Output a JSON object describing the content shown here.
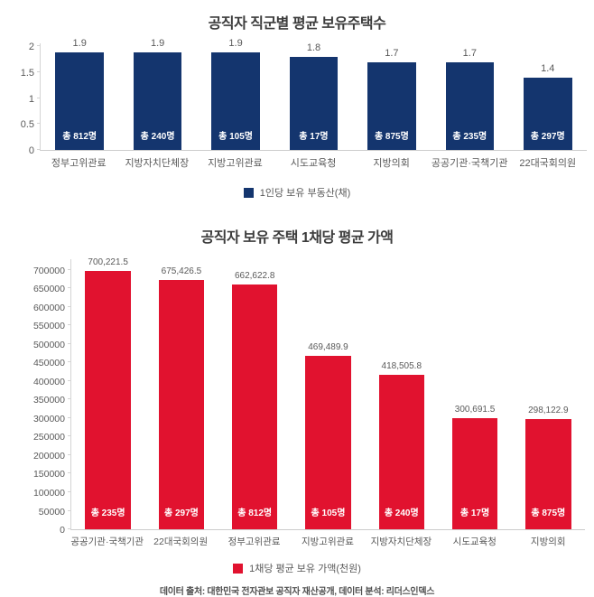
{
  "chart_data": [
    {
      "type": "bar",
      "title": "공직자 직군별 평균 보유주택수",
      "categories": [
        "정부고위관료",
        "지방자치단체장",
        "지방고위관료",
        "시도교육청",
        "지방의회",
        "공공기관·국책기관",
        "22대국회의원"
      ],
      "values": [
        1.9,
        1.9,
        1.9,
        1.8,
        1.7,
        1.7,
        1.4
      ],
      "value_labels": [
        "1.9",
        "1.9",
        "1.9",
        "1.8",
        "1.7",
        "1.7",
        "1.4"
      ],
      "bar_counts": [
        "총 812명",
        "총 240명",
        "총 105명",
        "총 17명",
        "총 875명",
        "총 235명",
        "총 297명"
      ],
      "ylim": [
        0,
        2
      ],
      "yticks": [
        0,
        0.5,
        1,
        1.5,
        2
      ],
      "ytick_labels": [
        "0",
        "0.5",
        "1",
        "1.5",
        "2"
      ],
      "legend": "1인당 보유 부동산(채)",
      "legend_position": "bottom",
      "grid": false,
      "bar_color": "#14356e"
    },
    {
      "type": "bar",
      "title": "공직자 보유 주택 1채당 평균 가액",
      "categories": [
        "공공기관·국책기관",
        "22대국회의원",
        "정부고위관료",
        "지방고위관료",
        "지방자치단체장",
        "시도교육청",
        "지방의회"
      ],
      "values": [
        700221.5,
        675426.5,
        662622.8,
        469489.9,
        418505.8,
        300691.5,
        298122.9
      ],
      "value_labels": [
        "700,221.5",
        "675,426.5",
        "662,622.8",
        "469,489.9",
        "418,505.8",
        "300,691.5",
        "298,122.9"
      ],
      "bar_counts": [
        "총 235명",
        "총 297명",
        "총 812명",
        "총 105명",
        "총 240명",
        "총 17명",
        "총 875명"
      ],
      "ylim": [
        0,
        700000
      ],
      "yticks": [
        0,
        50000,
        100000,
        150000,
        200000,
        250000,
        300000,
        350000,
        400000,
        450000,
        500000,
        550000,
        600000,
        650000,
        700000
      ],
      "ytick_labels": [
        "0",
        "50000",
        "100000",
        "150000",
        "200000",
        "250000",
        "300000",
        "350000",
        "400000",
        "450000",
        "500000",
        "550000",
        "600000",
        "650000",
        "700000"
      ],
      "legend": "1채당 평균 보유 가액(천원)",
      "legend_position": "bottom",
      "grid": false,
      "bar_color": "#e1122f"
    }
  ],
  "footer": "데이터 출처: 대한민국 전자관보 공직자 재산공개, 데이터 분석: 리더스인덱스"
}
